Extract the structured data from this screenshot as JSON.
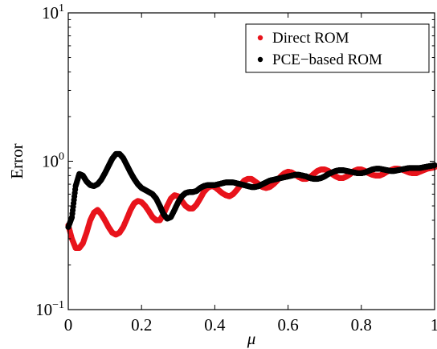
{
  "chart_data": {
    "type": "scatter",
    "xlabel": "μ",
    "ylabel": "Error",
    "xlim": [
      0,
      1
    ],
    "ylim": [
      0.1,
      10
    ],
    "yscale": "log",
    "grid": false,
    "legend_position": "top-right",
    "x_ticks": [
      {
        "value": 0,
        "label": "0"
      },
      {
        "value": 0.2,
        "label": "0.2"
      },
      {
        "value": 0.4,
        "label": "0.4"
      },
      {
        "value": 0.6,
        "label": "0.6"
      },
      {
        "value": 0.8,
        "label": "0.8"
      },
      {
        "value": 1,
        "label": "1"
      }
    ],
    "y_ticks": [
      {
        "value": 0.1,
        "base": "10",
        "exp": "−1"
      },
      {
        "value": 1,
        "base": "10",
        "exp": "0"
      },
      {
        "value": 10,
        "base": "10",
        "exp": "1"
      }
    ],
    "series": [
      {
        "name": "Direct ROM",
        "color": "#e8141c",
        "x": [
          0,
          0.01,
          0.02,
          0.03,
          0.04,
          0.05,
          0.06,
          0.07,
          0.08,
          0.09,
          0.1,
          0.11,
          0.12,
          0.13,
          0.14,
          0.15,
          0.16,
          0.17,
          0.18,
          0.19,
          0.2,
          0.21,
          0.22,
          0.23,
          0.24,
          0.25,
          0.26,
          0.27,
          0.28,
          0.29,
          0.3,
          0.31,
          0.32,
          0.33,
          0.34,
          0.35,
          0.36,
          0.37,
          0.38,
          0.39,
          0.4,
          0.41,
          0.42,
          0.43,
          0.44,
          0.45,
          0.46,
          0.47,
          0.48,
          0.49,
          0.5,
          0.51,
          0.52,
          0.53,
          0.54,
          0.55,
          0.56,
          0.57,
          0.58,
          0.59,
          0.6,
          0.61,
          0.62,
          0.63,
          0.64,
          0.65,
          0.66,
          0.67,
          0.68,
          0.69,
          0.7,
          0.71,
          0.72,
          0.73,
          0.74,
          0.75,
          0.76,
          0.77,
          0.78,
          0.79,
          0.8,
          0.81,
          0.82,
          0.83,
          0.84,
          0.85,
          0.86,
          0.87,
          0.88,
          0.89,
          0.9,
          0.91,
          0.92,
          0.93,
          0.94,
          0.95,
          0.96,
          0.97,
          0.98,
          0.99,
          1.0
        ],
        "y": [
          0.37,
          0.3,
          0.26,
          0.26,
          0.28,
          0.33,
          0.4,
          0.45,
          0.47,
          0.44,
          0.4,
          0.36,
          0.33,
          0.32,
          0.33,
          0.36,
          0.41,
          0.47,
          0.52,
          0.54,
          0.53,
          0.5,
          0.46,
          0.42,
          0.4,
          0.4,
          0.44,
          0.5,
          0.56,
          0.59,
          0.58,
          0.54,
          0.5,
          0.48,
          0.48,
          0.51,
          0.56,
          0.62,
          0.66,
          0.68,
          0.67,
          0.64,
          0.61,
          0.59,
          0.58,
          0.6,
          0.64,
          0.69,
          0.74,
          0.76,
          0.76,
          0.73,
          0.7,
          0.67,
          0.66,
          0.67,
          0.7,
          0.74,
          0.79,
          0.83,
          0.85,
          0.84,
          0.81,
          0.78,
          0.76,
          0.76,
          0.78,
          0.82,
          0.86,
          0.88,
          0.88,
          0.86,
          0.82,
          0.79,
          0.77,
          0.77,
          0.79,
          0.82,
          0.86,
          0.88,
          0.88,
          0.86,
          0.83,
          0.81,
          0.8,
          0.8,
          0.82,
          0.85,
          0.87,
          0.89,
          0.89,
          0.88,
          0.86,
          0.84,
          0.83,
          0.83,
          0.85,
          0.87,
          0.89,
          0.9,
          0.91
        ]
      },
      {
        "name": "PCE−based ROM",
        "color": "#000000",
        "x": [
          0,
          0.01,
          0.02,
          0.03,
          0.04,
          0.05,
          0.06,
          0.07,
          0.08,
          0.09,
          0.1,
          0.11,
          0.12,
          0.13,
          0.14,
          0.15,
          0.16,
          0.17,
          0.18,
          0.19,
          0.2,
          0.21,
          0.22,
          0.23,
          0.24,
          0.25,
          0.26,
          0.27,
          0.28,
          0.29,
          0.3,
          0.31,
          0.32,
          0.33,
          0.34,
          0.35,
          0.36,
          0.37,
          0.38,
          0.39,
          0.4,
          0.41,
          0.42,
          0.43,
          0.44,
          0.45,
          0.46,
          0.47,
          0.48,
          0.49,
          0.5,
          0.51,
          0.52,
          0.53,
          0.54,
          0.55,
          0.56,
          0.57,
          0.58,
          0.59,
          0.6,
          0.61,
          0.62,
          0.63,
          0.64,
          0.65,
          0.66,
          0.67,
          0.68,
          0.69,
          0.7,
          0.71,
          0.72,
          0.73,
          0.74,
          0.75,
          0.76,
          0.77,
          0.78,
          0.79,
          0.8,
          0.81,
          0.82,
          0.83,
          0.84,
          0.85,
          0.86,
          0.87,
          0.88,
          0.89,
          0.9,
          0.91,
          0.92,
          0.93,
          0.94,
          0.95,
          0.96,
          0.97,
          0.98,
          0.99,
          1.0
        ],
        "y": [
          0.36,
          0.42,
          0.68,
          0.82,
          0.8,
          0.73,
          0.69,
          0.68,
          0.7,
          0.75,
          0.83,
          0.93,
          1.04,
          1.12,
          1.12,
          1.05,
          0.94,
          0.84,
          0.76,
          0.7,
          0.66,
          0.64,
          0.62,
          0.6,
          0.56,
          0.5,
          0.44,
          0.41,
          0.42,
          0.47,
          0.53,
          0.58,
          0.61,
          0.62,
          0.62,
          0.63,
          0.66,
          0.68,
          0.69,
          0.69,
          0.69,
          0.7,
          0.71,
          0.72,
          0.72,
          0.72,
          0.71,
          0.7,
          0.69,
          0.68,
          0.67,
          0.67,
          0.68,
          0.7,
          0.72,
          0.74,
          0.75,
          0.76,
          0.77,
          0.78,
          0.79,
          0.8,
          0.81,
          0.81,
          0.8,
          0.79,
          0.77,
          0.76,
          0.76,
          0.77,
          0.79,
          0.82,
          0.84,
          0.86,
          0.87,
          0.87,
          0.86,
          0.85,
          0.84,
          0.83,
          0.83,
          0.84,
          0.86,
          0.88,
          0.89,
          0.89,
          0.88,
          0.87,
          0.86,
          0.86,
          0.87,
          0.88,
          0.89,
          0.9,
          0.9,
          0.9,
          0.9,
          0.91,
          0.92,
          0.93,
          0.94
        ]
      }
    ]
  }
}
